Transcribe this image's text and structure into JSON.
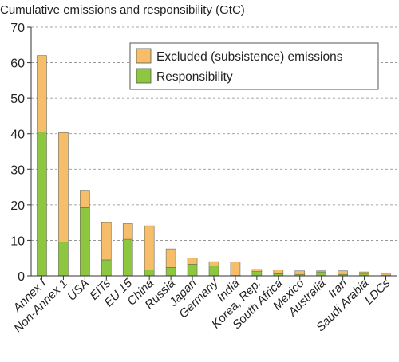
{
  "chart_data": {
    "type": "bar",
    "stacked": true,
    "title": "Cumulative emissions and responsibility (GtC)",
    "xlabel": "",
    "ylabel": "",
    "ylim": [
      0,
      70
    ],
    "yticks": [
      0,
      10,
      20,
      30,
      40,
      50,
      60,
      70
    ],
    "grid": "horizontal-dashed",
    "legend_position": "top-right",
    "categories": [
      "Annex I",
      "Non-Annex 1",
      "USA",
      "EITs",
      "EU 15",
      "China",
      "Russia",
      "Japan",
      "Germany",
      "India",
      "Korea, Rep.",
      "South Africa",
      "Mexico",
      "Australia",
      "Iran",
      "Saudi Arabia",
      "LDCs"
    ],
    "series": [
      {
        "name": "Responsibility",
        "color": "#8dc63f",
        "values": [
          40.5,
          9.5,
          19.2,
          4.5,
          10.3,
          1.7,
          2.4,
          3.3,
          2.8,
          0.1,
          1.2,
          0.6,
          0.4,
          1.1,
          0.4,
          0.7,
          0.1
        ]
      },
      {
        "name": "Excluded (subsistence) emissions",
        "color": "#f6bd6a",
        "values": [
          21.5,
          30.8,
          4.9,
          10.5,
          4.4,
          12.4,
          5.2,
          1.7,
          1.2,
          3.8,
          0.6,
          1.1,
          1.0,
          0.3,
          1.0,
          0.4,
          0.4
        ]
      }
    ],
    "legend": [
      {
        "label": "Excluded (subsistence) emissions",
        "color": "#f6bd6a"
      },
      {
        "label": "Responsibility",
        "color": "#8dc63f"
      }
    ]
  }
}
